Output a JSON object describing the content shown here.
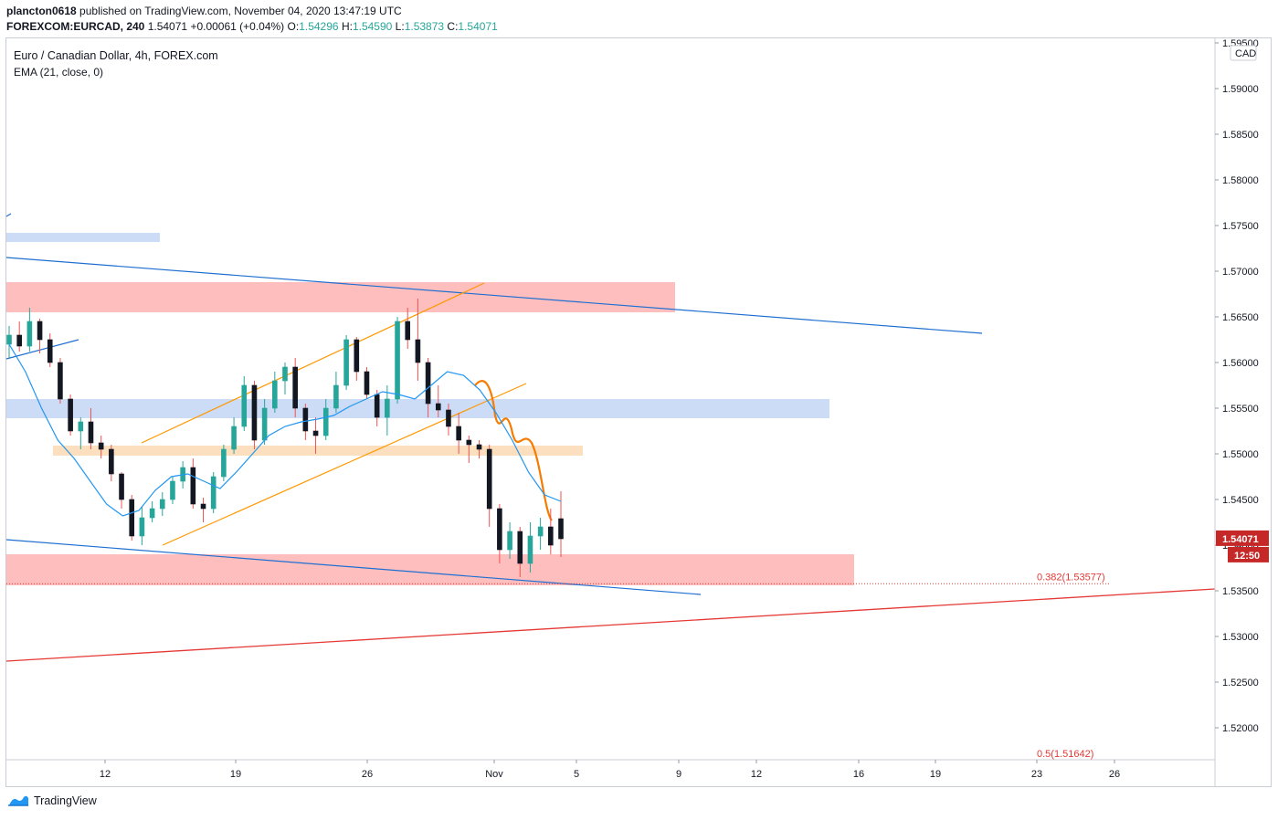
{
  "header": {
    "publisher": "plancton0618",
    "published_text": "published on TradingView.com, November 04, 2020 13:47:19 UTC",
    "symbol": "FOREXCOM:EURCAD, 240",
    "last": "1.54071",
    "change": "+0.00061 (+0.04%)",
    "o_label": "O:",
    "o_value": "1.54296",
    "h_label": "H:",
    "h_value": "1.54590",
    "l_label": "L:",
    "l_value": "1.53873",
    "c_label": "C:",
    "c_value": "1.54071"
  },
  "legend": {
    "title": "Euro / Canadian Dollar, 4h, FOREX.com",
    "indicator": "EMA (21, close, 0)"
  },
  "footer": {
    "brand": "TradingView"
  },
  "colors": {
    "up": "#26a69a",
    "down": "#ef5350",
    "candle": "#131722",
    "ema": "#2196f3",
    "trend_blue": "#1e6fd1",
    "channel": "#ff9800",
    "red_line": "#e53935",
    "zone_red": "#ffb3b3",
    "zone_blue": "#c3d6f5",
    "zone_orange": "#fbd9b3"
  },
  "chart_data": {
    "type": "candlestick",
    "currency": "CAD",
    "price_axis": {
      "ticks": [
        "1.59500",
        "1.59000",
        "1.58500",
        "1.58000",
        "1.57500",
        "1.57000",
        "1.56500",
        "1.56000",
        "1.55500",
        "1.55000",
        "1.54500",
        "1.54000",
        "1.53500",
        "1.53000",
        "1.52500",
        "1.52000"
      ],
      "range": [
        1.5165,
        1.595
      ]
    },
    "time_axis": {
      "ticks": [
        "12",
        "19",
        "26",
        "Nov",
        "5",
        "9",
        "12",
        "16",
        "19",
        "23",
        "26"
      ]
    },
    "last_price_label": "1.54071",
    "countdown_label": "12:50",
    "fib_levels": [
      {
        "label": "0.382(1.53577)",
        "price": 1.53577
      },
      {
        "label": "0.5(1.51642)",
        "price": 1.51642
      }
    ],
    "series": [
      {
        "name": "EMA (21, close, 0)",
        "type": "line",
        "values": [
          1.562,
          1.559,
          1.555,
          1.5515,
          1.5495,
          1.547,
          1.5445,
          1.5432,
          1.5438,
          1.546,
          1.5475,
          1.5478,
          1.547,
          1.5462,
          1.548,
          1.55,
          1.552,
          1.553,
          1.5535,
          1.5538,
          1.5542,
          1.5552,
          1.556,
          1.5568,
          1.5565,
          1.556,
          1.5575,
          1.559,
          1.5586,
          1.557,
          1.5545,
          1.5515,
          1.548,
          1.5455,
          1.5448
        ]
      }
    ],
    "candles_ohlc": [
      [
        1.562,
        1.564,
        1.5605,
        1.563
      ],
      [
        1.563,
        1.5645,
        1.5612,
        1.5618
      ],
      [
        1.5618,
        1.566,
        1.5612,
        1.5645
      ],
      [
        1.5645,
        1.5648,
        1.561,
        1.5625
      ],
      [
        1.5625,
        1.5632,
        1.5595,
        1.56
      ],
      [
        1.56,
        1.5605,
        1.5555,
        1.556
      ],
      [
        1.556,
        1.5565,
        1.552,
        1.5525
      ],
      [
        1.5525,
        1.554,
        1.5505,
        1.5535
      ],
      [
        1.5535,
        1.555,
        1.5505,
        1.5512
      ],
      [
        1.5512,
        1.552,
        1.5495,
        1.5505
      ],
      [
        1.5505,
        1.551,
        1.547,
        1.5478
      ],
      [
        1.5478,
        1.548,
        1.544,
        1.545
      ],
      [
        1.545,
        1.5455,
        1.5405,
        1.541
      ],
      [
        1.541,
        1.5442,
        1.54,
        1.543
      ],
      [
        1.543,
        1.5448,
        1.5425,
        1.544
      ],
      [
        1.544,
        1.5458,
        1.5432,
        1.545
      ],
      [
        1.545,
        1.5475,
        1.5445,
        1.547
      ],
      [
        1.547,
        1.5492,
        1.5462,
        1.5485
      ],
      [
        1.5485,
        1.5495,
        1.544,
        1.5445
      ],
      [
        1.5445,
        1.5452,
        1.5425,
        1.544
      ],
      [
        1.544,
        1.548,
        1.5435,
        1.5475
      ],
      [
        1.5475,
        1.551,
        1.547,
        1.5505
      ],
      [
        1.5505,
        1.554,
        1.55,
        1.553
      ],
      [
        1.553,
        1.5585,
        1.5525,
        1.5575
      ],
      [
        1.5575,
        1.558,
        1.5505,
        1.5515
      ],
      [
        1.5515,
        1.556,
        1.551,
        1.555
      ],
      [
        1.555,
        1.559,
        1.5545,
        1.558
      ],
      [
        1.558,
        1.56,
        1.5565,
        1.5595
      ],
      [
        1.5595,
        1.5605,
        1.554,
        1.555
      ],
      [
        1.555,
        1.5555,
        1.5515,
        1.5525
      ],
      [
        1.5525,
        1.554,
        1.55,
        1.552
      ],
      [
        1.552,
        1.556,
        1.5515,
        1.555
      ],
      [
        1.555,
        1.559,
        1.5545,
        1.5575
      ],
      [
        1.5575,
        1.563,
        1.557,
        1.5625
      ],
      [
        1.5625,
        1.5628,
        1.558,
        1.559
      ],
      [
        1.559,
        1.5595,
        1.556,
        1.5565
      ],
      [
        1.5565,
        1.557,
        1.553,
        1.554
      ],
      [
        1.554,
        1.5575,
        1.552,
        1.556
      ],
      [
        1.556,
        1.565,
        1.5555,
        1.5645
      ],
      [
        1.5645,
        1.566,
        1.5615,
        1.5625
      ],
      [
        1.5625,
        1.567,
        1.558,
        1.56
      ],
      [
        1.56,
        1.5605,
        1.554,
        1.5555
      ],
      [
        1.5555,
        1.5575,
        1.554,
        1.5548
      ],
      [
        1.5548,
        1.5555,
        1.552,
        1.553
      ],
      [
        1.553,
        1.5545,
        1.55,
        1.5515
      ],
      [
        1.5515,
        1.552,
        1.549,
        1.551
      ],
      [
        1.551,
        1.5515,
        1.5495,
        1.5505
      ],
      [
        1.5505,
        1.551,
        1.542,
        1.544
      ],
      [
        1.544,
        1.5445,
        1.538,
        1.5395
      ],
      [
        1.5395,
        1.5425,
        1.5385,
        1.5415
      ],
      [
        1.5415,
        1.542,
        1.5365,
        1.538
      ],
      [
        1.538,
        1.5425,
        1.537,
        1.541
      ],
      [
        1.541,
        1.543,
        1.5395,
        1.542
      ],
      [
        1.542,
        1.544,
        1.539,
        1.54
      ],
      [
        1.5429,
        1.5459,
        1.5387,
        1.5407
      ]
    ]
  }
}
